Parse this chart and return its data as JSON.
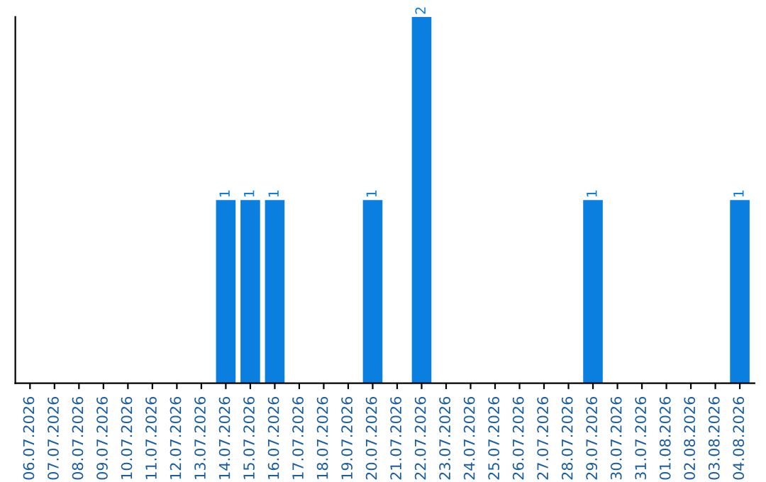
{
  "chart_data": {
    "type": "bar",
    "categories": [
      "06.07.2026",
      "07.07.2026",
      "08.07.2026",
      "09.07.2026",
      "10.07.2026",
      "11.07.2026",
      "12.07.2026",
      "13.07.2026",
      "14.07.2026",
      "15.07.2026",
      "16.07.2026",
      "17.07.2026",
      "18.07.2026",
      "19.07.2026",
      "20.07.2026",
      "21.07.2026",
      "22.07.2026",
      "23.07.2026",
      "24.07.2026",
      "25.07.2026",
      "26.07.2026",
      "27.07.2026",
      "28.07.2026",
      "29.07.2026",
      "30.07.2026",
      "31.07.2026",
      "01.08.2026",
      "02.08.2026",
      "03.08.2026",
      "04.08.2026"
    ],
    "values": [
      0,
      0,
      0,
      0,
      0,
      0,
      0,
      0,
      1,
      1,
      1,
      0,
      0,
      0,
      1,
      0,
      2,
      0,
      0,
      0,
      0,
      0,
      0,
      1,
      0,
      0,
      0,
      0,
      0,
      1
    ],
    "value_labels": [
      null,
      null,
      null,
      null,
      null,
      null,
      null,
      null,
      "1",
      "1",
      "1",
      null,
      null,
      null,
      "1",
      null,
      "2",
      null,
      null,
      null,
      null,
      null,
      null,
      "1",
      null,
      null,
      null,
      null,
      null,
      "1"
    ],
    "color": "#0a7fe0",
    "ylim": [
      0,
      2
    ],
    "tick_labels": "x",
    "grid": false,
    "legend": false
  }
}
